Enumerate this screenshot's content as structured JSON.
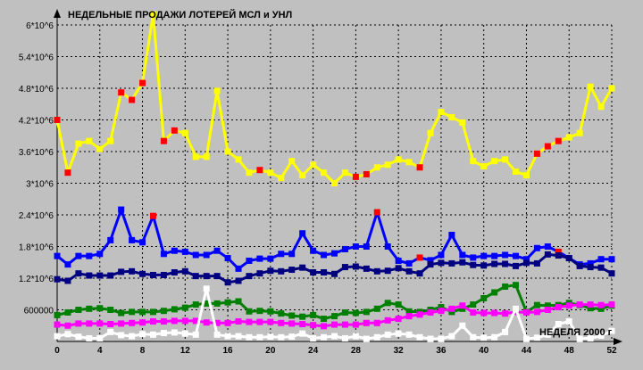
{
  "chart_data": {
    "type": "line",
    "title": "НЕДЕЛЬНЫЕ ПРОДАЖИ ЛОТЕРЕЙ МСЛ и УНЛ",
    "xlabel": "НЕДЕЛЯ 2000 г",
    "ylabel": "",
    "x": [
      0,
      1,
      2,
      3,
      4,
      5,
      6,
      7,
      8,
      9,
      10,
      11,
      12,
      13,
      14,
      15,
      16,
      17,
      18,
      19,
      20,
      21,
      22,
      23,
      24,
      25,
      26,
      27,
      28,
      29,
      30,
      31,
      32,
      33,
      34,
      35,
      36,
      37,
      38,
      39,
      40,
      41,
      42,
      43,
      44,
      45,
      46,
      47,
      48,
      49,
      50,
      51,
      52
    ],
    "xlim": [
      0,
      52
    ],
    "ylim": [
      0,
      6000000
    ],
    "grid": true,
    "x_ticks": [
      {
        "value": 0,
        "label": "0"
      },
      {
        "value": 4,
        "label": "4"
      },
      {
        "value": 8,
        "label": "8"
      },
      {
        "value": 12,
        "label": "12"
      },
      {
        "value": 16,
        "label": "16"
      },
      {
        "value": 20,
        "label": "20"
      },
      {
        "value": 24,
        "label": "24"
      },
      {
        "value": 28,
        "label": "28"
      },
      {
        "value": 32,
        "label": "32"
      },
      {
        "value": 36,
        "label": "36"
      },
      {
        "value": 40,
        "label": "40"
      },
      {
        "value": 44,
        "label": "44"
      },
      {
        "value": 48,
        "label": "48"
      },
      {
        "value": 52,
        "label": "52"
      }
    ],
    "y_ticks": [
      {
        "value": 600000,
        "label": "600000"
      },
      {
        "value": 1200000,
        "label": "1.2*10^6"
      },
      {
        "value": 1800000,
        "label": "1.8*10^6"
      },
      {
        "value": 2400000,
        "label": "2.4*10^6"
      },
      {
        "value": 3000000,
        "label": "3*10^6"
      },
      {
        "value": 3600000,
        "label": "3.6*10^6"
      },
      {
        "value": 4200000,
        "label": "4.2*10^6"
      },
      {
        "value": 4800000,
        "label": "4.8*10^6"
      },
      {
        "value": 5400000,
        "label": "5.4*10^6"
      },
      {
        "value": 6000000,
        "label": "6*10^6"
      }
    ],
    "series": [
      {
        "color": "#ffff00",
        "marker_color": "#ff0000",
        "values": [
          4200000,
          3200000,
          3750000,
          3800000,
          3650000,
          3800000,
          4720000,
          4580000,
          4900000,
          6200000,
          3800000,
          4000000,
          3950000,
          3500000,
          3500000,
          4750000,
          3600000,
          3450000,
          3200000,
          3250000,
          3200000,
          3100000,
          3420000,
          3150000,
          3350000,
          3200000,
          3000000,
          3200000,
          3120000,
          3170000,
          3300000,
          3350000,
          3450000,
          3400000,
          3300000,
          3950000,
          4350000,
          4250000,
          4150000,
          3420000,
          3320000,
          3420000,
          3450000,
          3220000,
          3150000,
          3560000,
          3700000,
          3800000,
          3870000,
          3950000,
          4830000,
          4450000,
          4800000
        ],
        "red_markers": [
          0,
          1,
          6,
          7,
          8,
          10,
          11,
          19,
          28,
          29,
          34,
          45,
          46,
          47
        ]
      },
      {
        "color": "#0000ff",
        "marker_color": "#ff0000",
        "values": [
          1620000,
          1460000,
          1620000,
          1620000,
          1660000,
          1920000,
          2500000,
          1920000,
          1880000,
          2380000,
          1660000,
          1720000,
          1700000,
          1640000,
          1640000,
          1720000,
          1580000,
          1380000,
          1530000,
          1570000,
          1570000,
          1660000,
          1660000,
          2050000,
          1720000,
          1640000,
          1670000,
          1750000,
          1800000,
          1800000,
          2450000,
          1800000,
          1530000,
          1480000,
          1590000,
          1540000,
          1640000,
          2020000,
          1640000,
          1590000,
          1620000,
          1620000,
          1640000,
          1620000,
          1560000,
          1770000,
          1800000,
          1700000,
          1580000,
          1460000,
          1480000,
          1560000,
          1560000
        ],
        "red_markers": [
          9,
          30,
          34,
          47
        ]
      },
      {
        "color": "#000080",
        "marker_color": "#000080",
        "values": [
          1180000,
          1150000,
          1290000,
          1250000,
          1250000,
          1250000,
          1320000,
          1330000,
          1280000,
          1260000,
          1260000,
          1310000,
          1330000,
          1240000,
          1240000,
          1240000,
          1120000,
          1150000,
          1240000,
          1290000,
          1340000,
          1330000,
          1360000,
          1400000,
          1310000,
          1310000,
          1280000,
          1410000,
          1420000,
          1380000,
          1330000,
          1340000,
          1390000,
          1330000,
          1290000,
          1460000,
          1490000,
          1480000,
          1500000,
          1450000,
          1440000,
          1470000,
          1470000,
          1430000,
          1490000,
          1480000,
          1650000,
          1630000,
          1580000,
          1430000,
          1410000,
          1400000,
          1290000
        ],
        "red_markers": []
      },
      {
        "color": "#008000",
        "marker_color": "#008000",
        "values": [
          500000,
          550000,
          600000,
          620000,
          630000,
          600000,
          540000,
          560000,
          560000,
          560000,
          580000,
          610000,
          640000,
          700000,
          720000,
          720000,
          740000,
          760000,
          570000,
          580000,
          570000,
          530000,
          490000,
          470000,
          500000,
          430000,
          480000,
          550000,
          540000,
          560000,
          620000,
          730000,
          700000,
          570000,
          560000,
          600000,
          650000,
          560000,
          620000,
          700000,
          820000,
          930000,
          1040000,
          1070000,
          560000,
          690000,
          680000,
          690000,
          730000,
          690000,
          630000,
          620000,
          680000
        ],
        "red_markers": [
          21,
          22,
          23,
          24,
          27,
          28,
          32,
          34,
          37,
          43,
          48,
          50
        ]
      },
      {
        "color": "#ff00ff",
        "marker_color": "#ff00ff",
        "values": [
          320000,
          300000,
          340000,
          340000,
          340000,
          330000,
          340000,
          350000,
          360000,
          380000,
          380000,
          390000,
          390000,
          390000,
          360000,
          350000,
          350000,
          380000,
          370000,
          370000,
          370000,
          350000,
          340000,
          330000,
          310000,
          290000,
          320000,
          320000,
          320000,
          350000,
          350000,
          400000,
          430000,
          480000,
          510000,
          550000,
          580000,
          620000,
          680000,
          550000,
          540000,
          540000,
          530000,
          560000,
          550000,
          560000,
          600000,
          650000,
          680000,
          700000,
          700000,
          690000,
          700000
        ],
        "red_markers": []
      },
      {
        "color": "#ffffff",
        "marker_color": "#ffffff",
        "values": [
          100000,
          140000,
          90000,
          60000,
          60000,
          180000,
          120000,
          100000,
          140000,
          130000,
          160000,
          170000,
          150000,
          130000,
          1000000,
          130000,
          100000,
          100000,
          80000,
          80000,
          90000,
          80000,
          90000,
          150000,
          60000,
          80000,
          100000,
          60000,
          100000,
          50000,
          80000,
          130000,
          150000,
          130000,
          80000,
          50000,
          50000,
          100000,
          300000,
          80000,
          70000,
          80000,
          180000,
          620000,
          50000,
          70000,
          130000,
          330000,
          380000,
          50000,
          60000,
          110000,
          200000
        ],
        "red_markers": []
      }
    ]
  }
}
